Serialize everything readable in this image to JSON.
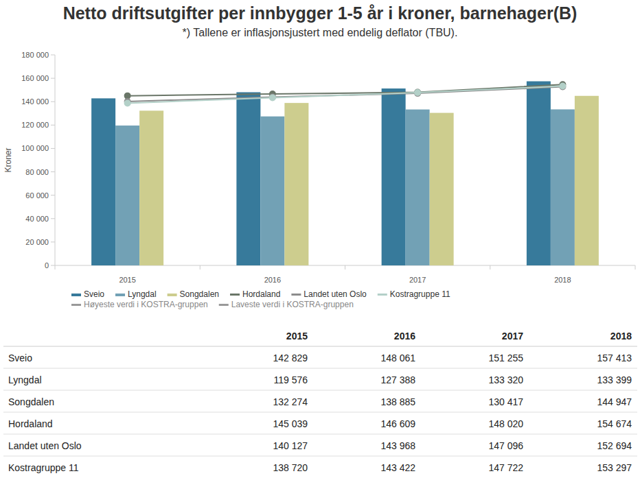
{
  "chart_data": {
    "type": "bar",
    "title": "Netto driftsutgifter per innbygger 1-5 år i kroner, barnehager(B)",
    "subtitle": "*) Tallene er inflasjonsjustert med endelig deflator (TBU).",
    "y_label": "Kroner",
    "categories": [
      "2015",
      "2016",
      "2017",
      "2018"
    ],
    "ylim": [
      0,
      180000
    ],
    "yticks": [
      0,
      {
        "value": 20000,
        "label": "20 000"
      },
      {
        "value": 40000,
        "label": "40 000"
      },
      {
        "value": 60000,
        "label": "60 000"
      },
      {
        "value": 80000,
        "label": "80 000"
      },
      {
        "value": 100000,
        "label": "100 000"
      },
      {
        "value": 120000,
        "label": "120 000"
      },
      {
        "value": 140000,
        "label": "140 000"
      },
      {
        "value": 160000,
        "label": "160 000"
      },
      {
        "value": 180000,
        "label": "180 000"
      }
    ],
    "grid": false,
    "legend": "bottom",
    "series": [
      {
        "name": "Sveio",
        "type": "bar",
        "color": "#377a9b",
        "values": [
          142829,
          148061,
          151255,
          157413
        ]
      },
      {
        "name": "Lyngdal",
        "type": "bar",
        "color": "#72a1b5",
        "values": [
          119576,
          127388,
          133320,
          133399
        ]
      },
      {
        "name": "Songdalen",
        "type": "bar",
        "color": "#cdcd8e",
        "values": [
          132274,
          138885,
          130417,
          144947
        ]
      },
      {
        "name": "Hordaland",
        "type": "line",
        "color": "#6a7668",
        "marker": "circle",
        "values": [
          145039,
          146609,
          148020,
          154674
        ]
      },
      {
        "name": "Landet uten Oslo",
        "type": "line",
        "color": "#8c8c8c",
        "marker": "circle",
        "values": [
          140127,
          143968,
          147096,
          152694
        ]
      },
      {
        "name": "Kostragruppe 11",
        "type": "line",
        "color": "#b3d0c8",
        "marker": "circle",
        "values": [
          138720,
          143422,
          147722,
          153297
        ]
      },
      {
        "name": "Høyeste verdi i KOSTRA-gruppen",
        "type": "line",
        "color": "#999999",
        "marker": "circle",
        "values": [
          null,
          null,
          null,
          null
        ]
      },
      {
        "name": "Laveste verdi i KOSTRA-gruppen",
        "type": "line",
        "color": "#999999",
        "marker": "circle",
        "values": [
          null,
          null,
          null,
          null
        ]
      }
    ]
  },
  "table": {
    "columns": [
      "2015",
      "2016",
      "2017",
      "2018"
    ],
    "rows": [
      {
        "label": "Sveio",
        "cells": [
          "142 829",
          "148 061",
          "151 255",
          "157 413"
        ]
      },
      {
        "label": "Lyngdal",
        "cells": [
          "119 576",
          "127 388",
          "133 320",
          "133 399"
        ]
      },
      {
        "label": "Songdalen",
        "cells": [
          "132 274",
          "138 885",
          "130 417",
          "144 947"
        ]
      },
      {
        "label": "Hordaland",
        "cells": [
          "145 039",
          "146 609",
          "148 020",
          "154 674"
        ]
      },
      {
        "label": "Landet uten Oslo",
        "cells": [
          "140 127",
          "143 968",
          "147 096",
          "152 694"
        ]
      },
      {
        "label": "Kostragruppe 11",
        "cells": [
          "138 720",
          "143 422",
          "147 722",
          "153 297"
        ]
      }
    ]
  }
}
